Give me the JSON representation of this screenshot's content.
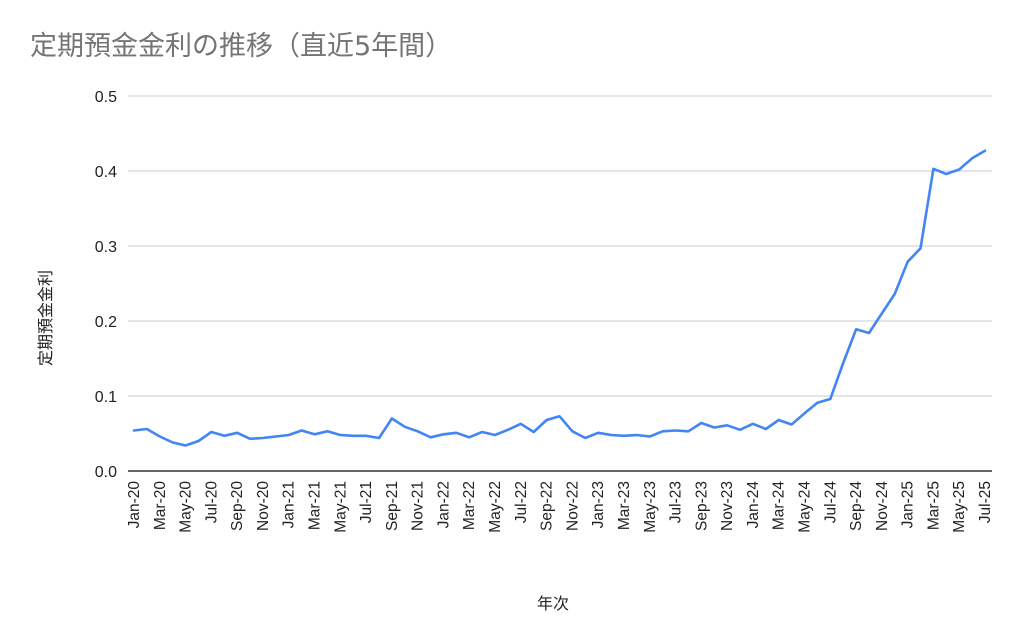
{
  "chart_data": {
    "type": "line",
    "title": "定期預金金利の推移（直近5年間）",
    "xlabel": "年次",
    "ylabel": "定期預金金利",
    "ylim": [
      0,
      0.5
    ],
    "yticks": [
      "0.0",
      "0.1",
      "0.2",
      "0.3",
      "0.4",
      "0.5"
    ],
    "grid": true,
    "legend": "none",
    "line_color": "#4285f4",
    "x": [
      "Jan-20",
      "Feb-20",
      "Mar-20",
      "Apr-20",
      "May-20",
      "Jun-20",
      "Jul-20",
      "Aug-20",
      "Sep-20",
      "Oct-20",
      "Nov-20",
      "Dec-20",
      "Jan-21",
      "Feb-21",
      "Mar-21",
      "Apr-21",
      "May-21",
      "Jun-21",
      "Jul-21",
      "Aug-21",
      "Sep-21",
      "Oct-21",
      "Nov-21",
      "Dec-21",
      "Jan-22",
      "Feb-22",
      "Mar-22",
      "Apr-22",
      "May-22",
      "Jun-22",
      "Jul-22",
      "Aug-22",
      "Sep-22",
      "Oct-22",
      "Nov-22",
      "Dec-22",
      "Jan-23",
      "Feb-23",
      "Mar-23",
      "Apr-23",
      "May-23",
      "Jun-23",
      "Jul-23",
      "Aug-23",
      "Sep-23",
      "Oct-23",
      "Nov-23",
      "Dec-23",
      "Jan-24",
      "Feb-24",
      "Mar-24",
      "Apr-24",
      "May-24",
      "Jun-24",
      "Jul-24",
      "Aug-24",
      "Sep-24",
      "Oct-24",
      "Nov-24",
      "Dec-24",
      "Jan-25",
      "Feb-25",
      "Mar-25",
      "Apr-25",
      "May-25",
      "Jun-25",
      "Jul-25"
    ],
    "xtick_labels": [
      "Jan-20",
      "Mar-20",
      "May-20",
      "Jul-20",
      "Sep-20",
      "Nov-20",
      "Jan-21",
      "Mar-21",
      "May-21",
      "Jul-21",
      "Sep-21",
      "Nov-21",
      "Jan-22",
      "Mar-22",
      "May-22",
      "Jul-22",
      "Sep-22",
      "Nov-22",
      "Jan-23",
      "Mar-23",
      "May-23",
      "Jul-23",
      "Sep-23",
      "Nov-23",
      "Jan-24",
      "Mar-24",
      "May-24",
      "Jul-24",
      "Sep-24",
      "Nov-24",
      "Jan-25",
      "Mar-25",
      "May-25",
      "Jul-25"
    ],
    "series": [
      {
        "name": "定期預金金利",
        "values": [
          0.054,
          0.056,
          0.046,
          0.038,
          0.034,
          0.04,
          0.052,
          0.047,
          0.051,
          0.043,
          0.044,
          0.046,
          0.048,
          0.054,
          0.049,
          0.053,
          0.048,
          0.047,
          0.047,
          0.044,
          0.07,
          0.059,
          0.053,
          0.045,
          0.049,
          0.051,
          0.045,
          0.052,
          0.048,
          0.055,
          0.063,
          0.052,
          0.068,
          0.073,
          0.053,
          0.044,
          0.051,
          0.048,
          0.047,
          0.048,
          0.046,
          0.053,
          0.054,
          0.053,
          0.064,
          0.058,
          0.061,
          0.055,
          0.063,
          0.056,
          0.068,
          0.062,
          0.077,
          0.091,
          0.096,
          0.144,
          0.189,
          0.184,
          0.21,
          0.236,
          0.279,
          0.297,
          0.403,
          0.396,
          0.402,
          0.417,
          0.427
        ]
      }
    ]
  }
}
